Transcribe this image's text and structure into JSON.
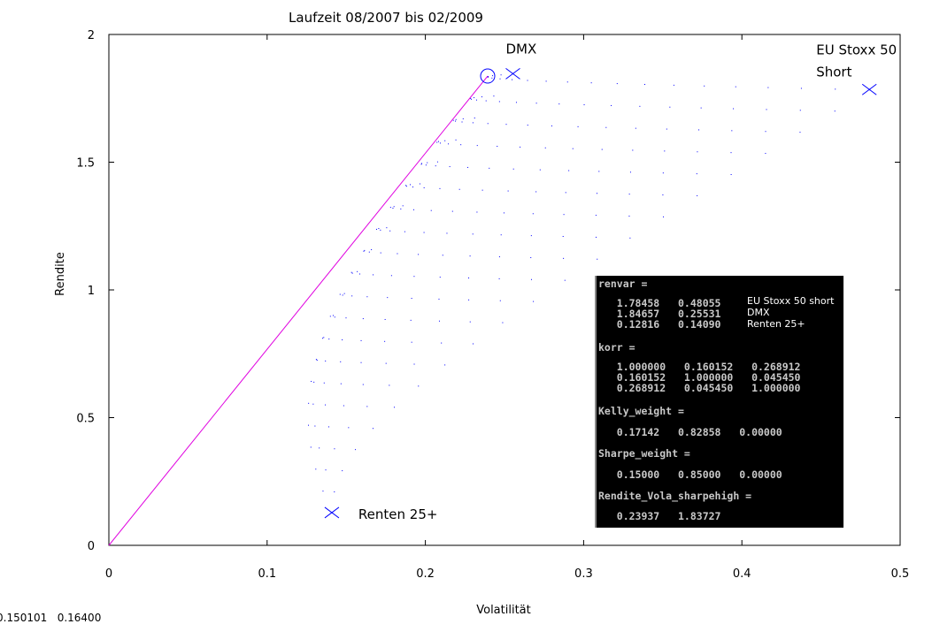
{
  "chart_data": {
    "type": "scatter",
    "title": "Laufzeit 08/2007 bis 02/2009",
    "xlabel": "Volatilität",
    "ylabel": "Rendite",
    "xlim": [
      0,
      0.5
    ],
    "ylim": [
      0,
      2
    ],
    "xticks": [
      "0",
      "0.1",
      "0.2",
      "0.3",
      "0.4",
      "0.5"
    ],
    "yticks": [
      "0",
      "0.5",
      "1",
      "1.5",
      "2"
    ],
    "grid": false,
    "assets": [
      {
        "label": "EU Stoxx 50",
        "label2": "Short",
        "return": 1.78458,
        "vola": 0.48055
      },
      {
        "label": "DMX",
        "label2": "",
        "return": 1.84657,
        "vola": 0.25531
      },
      {
        "label": "Renten 25+",
        "label2": "",
        "return": 0.12816,
        "vola": 0.1409
      }
    ],
    "correlation": [
      [
        1.0,
        0.160152,
        0.268912
      ],
      [
        0.160152,
        1.0,
        0.04545
      ],
      [
        0.268912,
        0.04545,
        1.0
      ]
    ],
    "tangent_point": {
      "vola": 0.23937,
      "return": 1.83727
    },
    "colors": {
      "points": "#0000ff",
      "markers": "#0000ff",
      "tangent_line": "#e000e0"
    }
  },
  "console": {
    "lines": [
      "renvar =",
      "   1.78458   0.48055",
      "   1.84657   0.25531",
      "   0.12816   0.14090",
      "korr =",
      "   1.000000   0.160152   0.268912",
      "   0.160152   1.000000   0.045450",
      "   0.268912   0.045450   1.000000",
      "Kelly_weight =",
      "   0.17142   0.82858   0.00000",
      "Sharpe_weight =",
      "   0.15000   0.85000   0.00000",
      "Rendite_Vola_sharpehigh =",
      "   0.23937   1.83727"
    ],
    "names": [
      "EU Stoxx 50 short",
      "DMX",
      "Renten 25+"
    ]
  },
  "readout": "0.150101   0.16400"
}
